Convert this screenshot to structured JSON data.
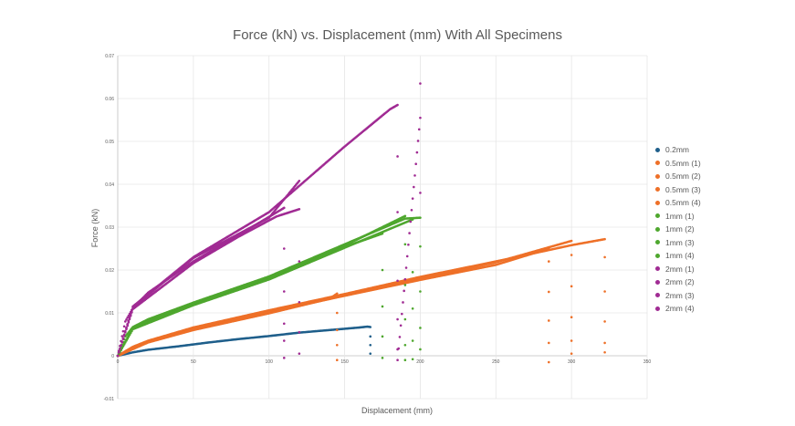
{
  "chart_data": {
    "type": "scatter",
    "title": "Force (kN) vs. Displacement (mm) With All Specimens",
    "xlabel": "Displacement (mm)",
    "ylabel": "Force (kN)",
    "xlim": [
      0,
      350
    ],
    "ylim": [
      -0.01,
      0.07
    ],
    "x_ticks": [
      "0",
      "50",
      "100",
      "150",
      "200",
      "250",
      "300",
      "350"
    ],
    "y_ticks": [
      "-0.01",
      "0",
      "0.01",
      "0.02",
      "0.03",
      "0.04",
      "0.05",
      "0.06",
      "0.07"
    ],
    "grid": true,
    "legend_position": "right",
    "series": [
      {
        "name": "0.2mm",
        "color": "#1f5f8b",
        "points": [
          [
            0,
            0
          ],
          [
            10,
            0.0008
          ],
          [
            20,
            0.0014
          ],
          [
            40,
            0.0022
          ],
          [
            60,
            0.0031
          ],
          [
            80,
            0.0039
          ],
          [
            100,
            0.0046
          ],
          [
            120,
            0.0054
          ],
          [
            140,
            0.006
          ],
          [
            160,
            0.0066
          ],
          [
            165,
            0.0068
          ],
          [
            167,
            0.0067
          ],
          [
            167,
            0.0045
          ],
          [
            167,
            0.0025
          ],
          [
            167,
            0.0005
          ]
        ]
      },
      {
        "name": "0.5mm (1)",
        "color": "#ee7028",
        "points": [
          [
            0,
            0
          ],
          [
            10,
            0.0021
          ],
          [
            20,
            0.0035
          ],
          [
            50,
            0.0066
          ],
          [
            100,
            0.0106
          ],
          [
            150,
            0.0144
          ],
          [
            200,
            0.0184
          ],
          [
            250,
            0.022
          ],
          [
            300,
            0.0258
          ],
          [
            322,
            0.0272
          ],
          [
            322,
            0.023
          ],
          [
            322,
            0.015
          ],
          [
            322,
            0.008
          ],
          [
            322,
            0.003
          ],
          [
            322,
            0.0008
          ]
        ]
      },
      {
        "name": "0.5mm (2)",
        "color": "#ee7028",
        "points": [
          [
            0,
            0
          ],
          [
            20,
            0.0033
          ],
          [
            50,
            0.0064
          ],
          [
            100,
            0.0104
          ],
          [
            150,
            0.0142
          ],
          [
            200,
            0.018
          ],
          [
            250,
            0.0218
          ],
          [
            300,
            0.0268
          ],
          [
            300,
            0.0235
          ],
          [
            300,
            0.0162
          ],
          [
            300,
            0.009
          ],
          [
            300,
            0.0035
          ],
          [
            300,
            0.0005
          ]
        ]
      },
      {
        "name": "0.5mm (3)",
        "color": "#ee7028",
        "points": [
          [
            0,
            0
          ],
          [
            20,
            0.0032
          ],
          [
            50,
            0.0062
          ],
          [
            100,
            0.0102
          ],
          [
            150,
            0.014
          ],
          [
            200,
            0.0177
          ],
          [
            250,
            0.0212
          ],
          [
            285,
            0.025
          ],
          [
            285,
            0.022
          ],
          [
            285,
            0.0149
          ],
          [
            285,
            0.0082
          ],
          [
            285,
            0.003
          ],
          [
            285,
            -0.0015
          ]
        ]
      },
      {
        "name": "0.5mm (4)",
        "color": "#ee7028",
        "points": [
          [
            0,
            0
          ],
          [
            20,
            0.0031
          ],
          [
            50,
            0.006
          ],
          [
            100,
            0.0099
          ],
          [
            140,
            0.0133
          ],
          [
            145,
            0.0145
          ],
          [
            145,
            0.01
          ],
          [
            145,
            0.006
          ],
          [
            145,
            0.0025
          ],
          [
            145,
            -0.001
          ]
        ]
      },
      {
        "name": "1mm (1)",
        "color": "#4ea72e",
        "points": [
          [
            0,
            0
          ],
          [
            5,
            0.0045
          ],
          [
            10,
            0.0067
          ],
          [
            20,
            0.0085
          ],
          [
            50,
            0.0124
          ],
          [
            100,
            0.0185
          ],
          [
            150,
            0.026
          ],
          [
            190,
            0.032
          ],
          [
            200,
            0.0322
          ],
          [
            200,
            0.0255
          ],
          [
            200,
            0.015
          ],
          [
            200,
            0.0065
          ],
          [
            200,
            0.0015
          ]
        ]
      },
      {
        "name": "1mm (2)",
        "color": "#4ea72e",
        "points": [
          [
            0,
            0
          ],
          [
            10,
            0.0066
          ],
          [
            50,
            0.0122
          ],
          [
            100,
            0.0183
          ],
          [
            150,
            0.0257
          ],
          [
            190,
            0.0326
          ],
          [
            190,
            0.026
          ],
          [
            190,
            0.0165
          ],
          [
            190,
            0.0085
          ],
          [
            190,
            0.0025
          ],
          [
            190,
            -0.001
          ]
        ]
      },
      {
        "name": "1mm (3)",
        "color": "#4ea72e",
        "points": [
          [
            0,
            0
          ],
          [
            10,
            0.0064
          ],
          [
            50,
            0.012
          ],
          [
            100,
            0.018
          ],
          [
            150,
            0.0254
          ],
          [
            175,
            0.0285
          ],
          [
            175,
            0.02
          ],
          [
            175,
            0.0115
          ],
          [
            175,
            0.0045
          ],
          [
            175,
            -0.0005
          ]
        ]
      },
      {
        "name": "1mm (4)",
        "color": "#4ea72e",
        "points": [
          [
            0,
            0
          ],
          [
            10,
            0.0062
          ],
          [
            50,
            0.0118
          ],
          [
            100,
            0.0178
          ],
          [
            150,
            0.0252
          ],
          [
            195,
            0.0318
          ],
          [
            195,
            0.0195
          ],
          [
            195,
            0.011
          ],
          [
            195,
            0.0035
          ],
          [
            195,
            -0.0008
          ]
        ]
      },
      {
        "name": "2mm (1)",
        "color": "#a02b93",
        "points": [
          [
            0,
            0
          ],
          [
            5,
            0.008
          ],
          [
            10,
            0.0111
          ],
          [
            20,
            0.0147
          ],
          [
            50,
            0.022
          ],
          [
            80,
            0.0282
          ],
          [
            110,
            0.0345
          ],
          [
            110,
            0.025
          ],
          [
            110,
            0.015
          ],
          [
            110,
            0.0075
          ],
          [
            110,
            0.0035
          ],
          [
            110,
            -0.0005
          ]
        ]
      },
      {
        "name": "2mm (2)",
        "color": "#a02b93",
        "points": [
          [
            0,
            0
          ],
          [
            10,
            0.0109
          ],
          [
            50,
            0.0216
          ],
          [
            80,
            0.0278
          ],
          [
            105,
            0.0325
          ],
          [
            120,
            0.0342
          ],
          [
            120,
            0.022
          ],
          [
            120,
            0.0125
          ],
          [
            120,
            0.0055
          ],
          [
            120,
            0.0005
          ]
        ]
      },
      {
        "name": "2mm (3)",
        "color": "#a02b93",
        "points": [
          [
            0,
            0
          ],
          [
            10,
            0.0113
          ],
          [
            50,
            0.0228
          ],
          [
            100,
            0.0322
          ],
          [
            120,
            0.0408
          ]
        ]
      },
      {
        "name": "2mm (4)",
        "color": "#a02b93",
        "points": [
          [
            0,
            0
          ],
          [
            10,
            0.0115
          ],
          [
            50,
            0.023
          ],
          [
            100,
            0.0335
          ],
          [
            150,
            0.0488
          ],
          [
            180,
            0.0575
          ],
          [
            185,
            0.0585
          ],
          [
            185,
            0.0465
          ],
          [
            185,
            0.0335
          ],
          [
            185,
            0.0175
          ],
          [
            185,
            0.0085
          ],
          [
            185,
            0.0015
          ],
          [
            185,
            -0.001
          ],
          [
            200,
            0.0555
          ],
          [
            200,
            0.0635
          ],
          [
            200,
            0.038
          ]
        ]
      }
    ]
  }
}
